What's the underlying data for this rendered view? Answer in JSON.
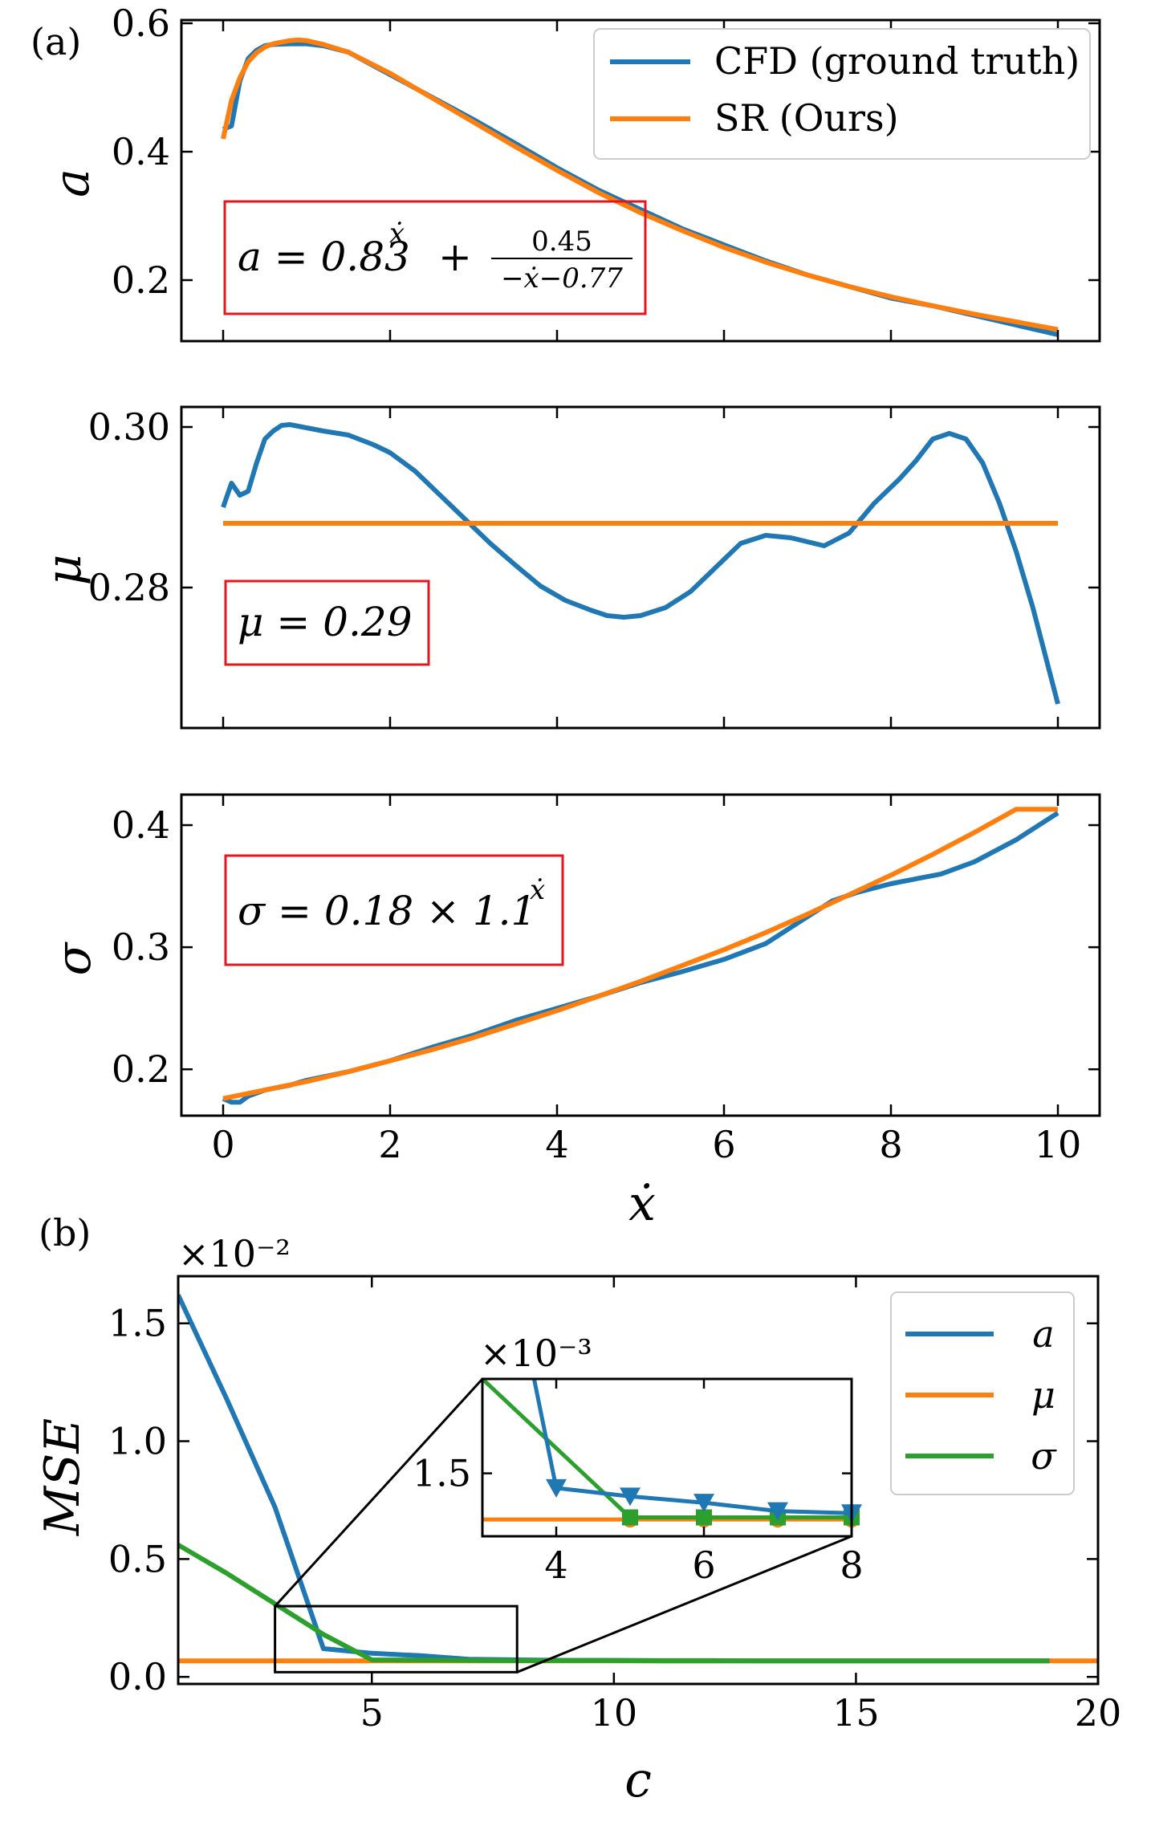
{
  "figure": {
    "panel_a_label": "(a)",
    "panel_b_label": "(b)",
    "colors": {
      "cfd": "#1f77b4",
      "sr": "#ff7f0e",
      "sigma": "#2ca02c",
      "eqbox": "#e8141b"
    }
  },
  "chart_data": [
    {
      "id": "a",
      "type": "line",
      "ylabel": "a",
      "xlim": [
        -0.5,
        10.5
      ],
      "ylim": [
        0.105,
        0.605
      ],
      "yticks": [
        0.2,
        0.4,
        0.6
      ],
      "ytick_labels": [
        "0.2",
        "0.4",
        "0.6"
      ],
      "xticks": [
        0,
        2,
        4,
        6,
        8,
        10
      ],
      "legend": {
        "placement": "top-right",
        "entries": [
          "CFD (ground truth)",
          "SR (Ours)"
        ]
      },
      "equation": {
        "lhs": "a = 0.83",
        "sup": "ẋ",
        "plus": "+",
        "num": "0.45",
        "den": "−ẋ−0.77"
      },
      "series": [
        {
          "name": "CFD (ground truth)",
          "x": [
            0,
            0.1,
            0.2,
            0.3,
            0.4,
            0.5,
            0.6,
            0.8,
            1,
            1.2,
            1.5,
            2,
            2.5,
            3,
            3.5,
            4,
            4.5,
            5,
            5.5,
            6,
            6.5,
            7,
            7.5,
            8,
            8.5,
            9,
            9.5,
            10
          ],
          "y": [
            0.435,
            0.44,
            0.51,
            0.545,
            0.558,
            0.565,
            0.567,
            0.568,
            0.568,
            0.565,
            0.555,
            0.52,
            0.485,
            0.45,
            0.413,
            0.375,
            0.34,
            0.31,
            0.28,
            0.255,
            0.23,
            0.208,
            0.19,
            0.172,
            0.16,
            0.145,
            0.13,
            0.115
          ]
        },
        {
          "name": "SR (Ours)",
          "x": [
            0,
            0.1,
            0.2,
            0.3,
            0.4,
            0.5,
            0.6,
            0.8,
            0.9,
            1,
            1.2,
            1.5,
            2,
            2.5,
            3,
            3.5,
            4,
            4.5,
            5,
            5.5,
            6,
            6.5,
            7,
            7.5,
            8,
            8.5,
            9,
            9.5,
            10
          ],
          "y": [
            0.42,
            0.48,
            0.515,
            0.54,
            0.554,
            0.563,
            0.568,
            0.573,
            0.574,
            0.573,
            0.567,
            0.555,
            0.522,
            0.484,
            0.446,
            0.408,
            0.371,
            0.336,
            0.305,
            0.277,
            0.251,
            0.228,
            0.208,
            0.19,
            0.174,
            0.16,
            0.147,
            0.135,
            0.123
          ]
        }
      ]
    },
    {
      "id": "mu",
      "type": "line",
      "ylabel": "μ",
      "xlim": [
        -0.5,
        10.5
      ],
      "ylim": [
        0.2625,
        0.3025
      ],
      "yticks": [
        0.28,
        0.3
      ],
      "ytick_labels": [
        "0.28",
        "0.30"
      ],
      "xticks": [
        0,
        2,
        4,
        6,
        8,
        10
      ],
      "equation": {
        "text": "μ = 0.29"
      },
      "series": [
        {
          "name": "CFD (ground truth)",
          "x": [
            0,
            0.1,
            0.2,
            0.3,
            0.4,
            0.5,
            0.6,
            0.7,
            0.8,
            0.9,
            1,
            1.2,
            1.5,
            1.8,
            2,
            2.3,
            2.6,
            2.9,
            3.2,
            3.5,
            3.8,
            4.1,
            4.4,
            4.6,
            4.8,
            5,
            5.3,
            5.6,
            5.9,
            6.2,
            6.5,
            6.8,
            7,
            7.2,
            7.5,
            7.8,
            8.1,
            8.3,
            8.5,
            8.7,
            8.9,
            9.1,
            9.3,
            9.5,
            9.7,
            9.85,
            10
          ],
          "y": [
            0.29,
            0.293,
            0.2915,
            0.292,
            0.2955,
            0.2985,
            0.2995,
            0.3002,
            0.3003,
            0.3001,
            0.2999,
            0.2995,
            0.299,
            0.2978,
            0.2968,
            0.2945,
            0.2915,
            0.2885,
            0.2855,
            0.2828,
            0.2802,
            0.2784,
            0.2772,
            0.2765,
            0.2763,
            0.2765,
            0.2775,
            0.2795,
            0.2825,
            0.2855,
            0.2865,
            0.2862,
            0.2857,
            0.2852,
            0.2868,
            0.2905,
            0.2935,
            0.2958,
            0.2985,
            0.2992,
            0.2985,
            0.2955,
            0.2905,
            0.2845,
            0.2775,
            0.2715,
            0.2655
          ]
        },
        {
          "name": "SR (Ours)",
          "x": [
            0,
            10
          ],
          "y": [
            0.288,
            0.288
          ]
        }
      ]
    },
    {
      "id": "sigma",
      "type": "line",
      "ylabel": "σ",
      "xlim": [
        -0.5,
        10.5
      ],
      "ylim": [
        0.162,
        0.425
      ],
      "yticks": [
        0.2,
        0.3,
        0.4
      ],
      "ytick_labels": [
        "0.2",
        "0.3",
        "0.4"
      ],
      "xticks": [
        0,
        2,
        4,
        6,
        8,
        10
      ],
      "xtick_labels": [
        "0",
        "2",
        "4",
        "6",
        "8",
        "10"
      ],
      "xlabel": "ẋ",
      "equation": {
        "lhs": "σ = 0.18 × 1.1",
        "sup": "ẋ"
      },
      "series": [
        {
          "name": "CFD (ground truth)",
          "x": [
            0,
            0.1,
            0.2,
            0.3,
            0.5,
            0.8,
            1,
            1.5,
            2,
            2.5,
            3,
            3.5,
            4,
            4.5,
            5,
            5.5,
            6,
            6.5,
            7,
            7.3,
            7.6,
            8,
            8.3,
            8.6,
            9,
            9.5,
            10
          ],
          "y": [
            0.176,
            0.173,
            0.173,
            0.178,
            0.183,
            0.187,
            0.191,
            0.198,
            0.207,
            0.218,
            0.228,
            0.24,
            0.25,
            0.26,
            0.271,
            0.28,
            0.29,
            0.303,
            0.325,
            0.338,
            0.345,
            0.352,
            0.356,
            0.36,
            0.37,
            0.388,
            0.41
          ]
        },
        {
          "name": "SR (Ours)",
          "x": [
            0,
            0.5,
            1,
            1.5,
            2,
            2.5,
            3,
            3.5,
            4,
            4.5,
            5,
            5.5,
            6,
            6.5,
            7,
            7.5,
            8,
            8.5,
            9,
            9.5,
            10
          ],
          "y": [
            0.176,
            0.183,
            0.19,
            0.198,
            0.207,
            0.216,
            0.226,
            0.237,
            0.248,
            0.26,
            0.272,
            0.285,
            0.298,
            0.312,
            0.327,
            0.343,
            0.359,
            0.376,
            0.394,
            0.413,
            0.413
          ]
        }
      ]
    },
    {
      "id": "mse",
      "type": "line",
      "xlabel": "c",
      "ylabel": "MSE",
      "multiplier": "×10⁻²",
      "xlim": [
        1,
        20
      ],
      "ylim": [
        -0.03,
        1.7
      ],
      "xticks": [
        5,
        10,
        15,
        20
      ],
      "xtick_labels": [
        "5",
        "10",
        "15",
        "20"
      ],
      "yticks": [
        0,
        0.5,
        1.0,
        1.5
      ],
      "ytick_labels": [
        "0.0",
        "0.5",
        "1.0",
        "1.5"
      ],
      "legend": {
        "placement": "top-right",
        "entries": [
          "a",
          "μ",
          "σ"
        ]
      },
      "zoom_box": {
        "x": [
          3,
          8
        ],
        "y": [
          0.02,
          0.3
        ]
      },
      "series": [
        {
          "name": "a",
          "x": [
            1,
            2,
            3,
            4,
            5,
            6,
            7,
            8,
            9,
            10,
            11,
            12,
            13,
            14,
            15,
            16,
            17,
            18,
            19
          ],
          "y": [
            1.62,
            1.18,
            0.72,
            0.12,
            0.1,
            0.09,
            0.075,
            0.072,
            0.07,
            0.07,
            0.069,
            0.069,
            0.068,
            0.068,
            0.068,
            0.068,
            0.068,
            0.068,
            0.068
          ]
        },
        {
          "name": "μ",
          "x": [
            1,
            20
          ],
          "y": [
            0.068,
            0.068
          ]
        },
        {
          "name": "σ",
          "x": [
            1,
            2,
            3,
            4,
            5,
            6,
            7,
            8,
            9,
            10,
            11,
            12,
            13,
            14,
            15,
            16,
            17,
            18,
            19
          ],
          "y": [
            0.56,
            0.44,
            0.31,
            0.18,
            0.072,
            0.071,
            0.07,
            0.069,
            0.069,
            0.069,
            0.068,
            0.068,
            0.068,
            0.068,
            0.068,
            0.068,
            0.068,
            0.068,
            0.068
          ]
        }
      ]
    },
    {
      "id": "inset",
      "type": "line",
      "multiplier": "×10⁻³",
      "xlim": [
        3,
        8
      ],
      "ylim": [
        1.2,
        1.95
      ],
      "xticks": [
        4,
        6,
        8
      ],
      "xtick_labels": [
        "4",
        "6",
        "8"
      ],
      "yticks": [
        1.5
      ],
      "ytick_labels": [
        "1.5"
      ],
      "series": [
        {
          "name": "a",
          "x": [
            3.7,
            4,
            5,
            6,
            7,
            8
          ],
          "y": [
            1.95,
            1.43,
            1.39,
            1.36,
            1.32,
            1.31
          ],
          "marker": "triangle-down"
        },
        {
          "name": "μ",
          "x": [
            3,
            8
          ],
          "y": [
            1.28,
            1.28
          ],
          "marker_x": [
            5,
            6,
            7,
            8
          ],
          "marker": "circle"
        },
        {
          "name": "σ",
          "x": [
            3,
            5,
            6,
            7,
            8
          ],
          "y": [
            1.95,
            1.29,
            1.29,
            1.29,
            1.29
          ],
          "marker_x": [
            5,
            6,
            7,
            8
          ],
          "marker": "square"
        }
      ]
    }
  ]
}
